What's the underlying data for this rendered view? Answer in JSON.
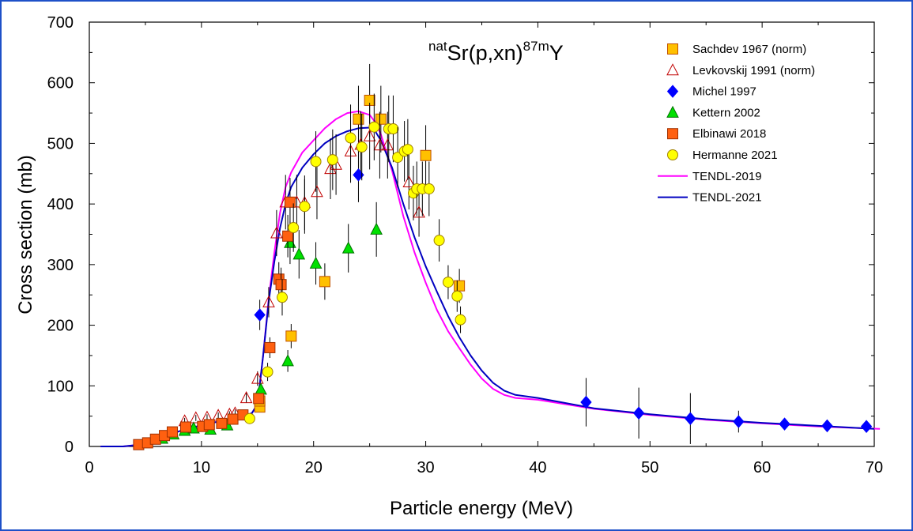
{
  "chart_data": {
    "type": "scatter",
    "title": {
      "pre": "nat",
      "main1": "Sr(p,xn)",
      "sup": "87m",
      "main2": "Y"
    },
    "xlabel": "Particle energy (MeV)",
    "ylabel": "Cross section (mb)",
    "xlim": [
      0,
      70
    ],
    "ylim": [
      0,
      700
    ],
    "xticks": [
      0,
      10,
      20,
      30,
      40,
      50,
      60,
      70
    ],
    "yticks": [
      0,
      100,
      200,
      300,
      400,
      500,
      600,
      700
    ],
    "legend_position": "top-right",
    "series": [
      {
        "name": "Sachdev 1967 (norm)",
        "marker": "square",
        "fill": "#ffc000",
        "stroke": "#c05000",
        "points": [
          [
            15.2,
            65,
            8
          ],
          [
            15.2,
            75,
            9
          ],
          [
            18.0,
            182,
            20
          ],
          [
            21.0,
            272,
            30
          ],
          [
            24.0,
            540,
            55
          ],
          [
            25.0,
            571,
            60
          ],
          [
            26.0,
            540,
            55
          ],
          [
            30.0,
            480,
            50
          ],
          [
            33.0,
            265,
            28
          ]
        ]
      },
      {
        "name": "Levkovskij 1991 (norm)",
        "marker": "triangle-open",
        "fill": "none",
        "stroke": "#c00000",
        "points": [
          [
            8.5,
            42,
            5
          ],
          [
            9.5,
            47,
            5
          ],
          [
            10.5,
            48,
            5
          ],
          [
            11.5,
            51,
            5
          ],
          [
            12.5,
            53,
            5
          ],
          [
            13.0,
            55,
            6
          ],
          [
            14.0,
            80,
            8
          ],
          [
            15.0,
            112,
            12
          ],
          [
            16.0,
            238,
            25
          ],
          [
            16.7,
            352,
            38
          ],
          [
            17.5,
            403,
            45
          ],
          [
            18.5,
            403,
            45
          ],
          [
            19.2,
            402,
            45
          ],
          [
            20.3,
            420,
            45
          ],
          [
            21.5,
            458,
            50
          ],
          [
            22.0,
            465,
            50
          ],
          [
            23.3,
            487,
            52
          ],
          [
            24.2,
            498,
            55
          ],
          [
            25.0,
            512,
            55
          ],
          [
            25.9,
            497,
            55
          ],
          [
            26.6,
            497,
            55
          ],
          [
            28.5,
            436,
            45
          ],
          [
            29.4,
            386,
            40
          ]
        ]
      },
      {
        "name": "Michel 1997",
        "marker": "diamond",
        "fill": "#0000ff",
        "stroke": "#0000ff",
        "points": [
          [
            15.2,
            217,
            25
          ],
          [
            24.0,
            448,
            45
          ],
          [
            44.3,
            73,
            40
          ],
          [
            49.0,
            55,
            42
          ],
          [
            53.6,
            46,
            42
          ],
          [
            57.9,
            41,
            18
          ],
          [
            62.0,
            37,
            10
          ],
          [
            65.8,
            34,
            7
          ],
          [
            69.3,
            33,
            6
          ]
        ]
      },
      {
        "name": "Kettern 2002",
        "marker": "triangle",
        "fill": "#00e000",
        "stroke": "#007000",
        "points": [
          [
            6.5,
            13,
            2
          ],
          [
            7.5,
            20,
            3
          ],
          [
            8.5,
            26,
            3
          ],
          [
            9.3,
            30,
            4
          ],
          [
            10.3,
            33,
            4
          ],
          [
            10.8,
            28,
            4
          ],
          [
            12.3,
            35,
            4
          ],
          [
            15.3,
            94,
            10
          ],
          [
            17.7,
            141,
            18
          ],
          [
            17.9,
            336,
            35
          ],
          [
            18.7,
            317,
            40
          ],
          [
            20.2,
            302,
            35
          ],
          [
            23.1,
            327,
            40
          ],
          [
            25.6,
            358,
            45
          ]
        ]
      },
      {
        "name": "Elbinawi 2018",
        "marker": "square",
        "fill": "#ff6010",
        "stroke": "#a03000",
        "points": [
          [
            4.4,
            3,
            1
          ],
          [
            5.2,
            6,
            1
          ],
          [
            5.9,
            12,
            2
          ],
          [
            6.7,
            18,
            2
          ],
          [
            7.4,
            24,
            3
          ],
          [
            8.6,
            32,
            3
          ],
          [
            10.1,
            33,
            4
          ],
          [
            10.7,
            36,
            4
          ],
          [
            11.8,
            38,
            4
          ],
          [
            12.8,
            45,
            5
          ],
          [
            13.7,
            52,
            5
          ],
          [
            15.1,
            79,
            8
          ],
          [
            16.1,
            163,
            17
          ],
          [
            16.9,
            276,
            28
          ],
          [
            17.1,
            267,
            28
          ],
          [
            17.7,
            347,
            35
          ],
          [
            17.9,
            403,
            40
          ]
        ]
      },
      {
        "name": "Hermanne 2021",
        "marker": "circle",
        "fill": "#ffff00",
        "stroke": "#a08000",
        "points": [
          [
            14.3,
            46,
            8
          ],
          [
            15.9,
            123,
            15
          ],
          [
            17.2,
            246,
            30
          ],
          [
            18.2,
            361,
            40
          ],
          [
            19.2,
            396,
            45
          ],
          [
            20.2,
            470,
            50
          ],
          [
            21.7,
            473,
            50
          ],
          [
            23.3,
            509,
            55
          ],
          [
            24.3,
            494,
            55
          ],
          [
            25.4,
            527,
            55
          ],
          [
            26.7,
            524,
            55
          ],
          [
            27.1,
            524,
            55
          ],
          [
            27.5,
            477,
            50
          ],
          [
            28.1,
            487,
            50
          ],
          [
            28.4,
            490,
            50
          ],
          [
            28.9,
            418,
            45
          ],
          [
            29.2,
            425,
            45
          ],
          [
            29.7,
            425,
            45
          ],
          [
            30.3,
            425,
            45
          ],
          [
            31.2,
            340,
            35
          ],
          [
            32.0,
            271,
            28
          ],
          [
            32.8,
            248,
            26
          ],
          [
            33.1,
            209,
            22
          ]
        ]
      }
    ],
    "curves": [
      {
        "name": "TENDL-2019",
        "color": "#ff00ff",
        "x": [
          1,
          3,
          4.5,
          6,
          8,
          10,
          12,
          13.5,
          14.5,
          15,
          15.5,
          16,
          16.5,
          17,
          17.5,
          18,
          19,
          20,
          21,
          22,
          23,
          24,
          25,
          25.5,
          26,
          27,
          28,
          29,
          30,
          31,
          32,
          33,
          34,
          35,
          36,
          37,
          38,
          40,
          45,
          50,
          55,
          60,
          65,
          70.5
        ],
        "y": [
          0,
          0,
          3,
          12,
          25,
          35,
          43,
          48,
          55,
          70,
          150,
          245,
          320,
          385,
          428,
          452,
          485,
          505,
          525,
          540,
          550,
          553,
          547,
          535,
          515,
          455,
          380,
          320,
          270,
          225,
          190,
          162,
          135,
          112,
          95,
          85,
          80,
          77,
          62,
          52,
          44,
          38,
          33,
          29
        ]
      },
      {
        "name": "TENDL-2021",
        "color": "#0000c0",
        "x": [
          1,
          3,
          4.5,
          6,
          8,
          10,
          12,
          13.5,
          14.5,
          15,
          15.5,
          16,
          16.5,
          17,
          17.5,
          18,
          19,
          20,
          21,
          22,
          23,
          24,
          25,
          25.5,
          26,
          27,
          28,
          29,
          30,
          31,
          32,
          33,
          34,
          35,
          36,
          37,
          38,
          40,
          45,
          50,
          55,
          60,
          65,
          70
        ],
        "y": [
          0,
          0,
          3,
          12,
          25,
          35,
          43,
          48,
          55,
          70,
          150,
          240,
          305,
          360,
          400,
          428,
          460,
          482,
          500,
          512,
          520,
          525,
          526,
          520,
          505,
          460,
          400,
          345,
          297,
          255,
          215,
          180,
          150,
          125,
          105,
          92,
          85,
          80,
          63,
          53,
          45,
          39,
          34,
          29
        ]
      }
    ]
  }
}
